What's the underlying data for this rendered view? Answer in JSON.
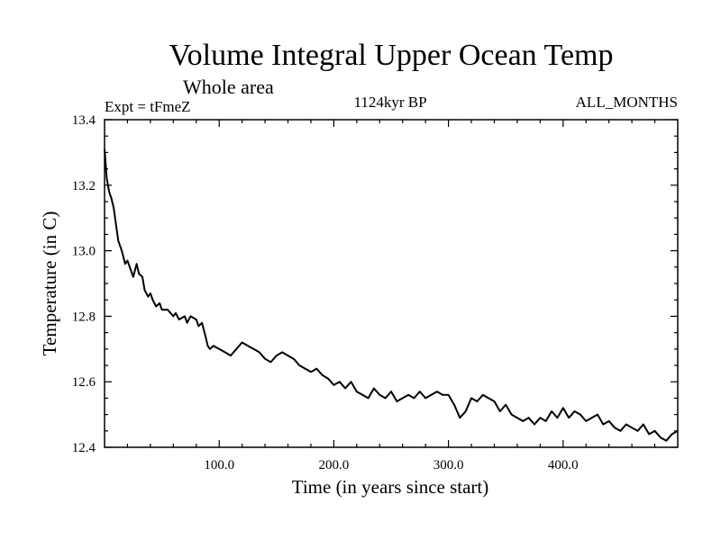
{
  "chart_data": {
    "type": "line",
    "title": "Volume Integral Upper Ocean Temp",
    "subtitle": "Whole area",
    "experiment_label": "Expt = tFmeZ",
    "period_label": "1124kyr BP",
    "months_label": "ALL_MONTHS",
    "xlabel": "Time (in years since start)",
    "ylabel": "Temperature (in C)",
    "xlim": [
      0,
      500
    ],
    "ylim": [
      12.4,
      13.4
    ],
    "xticks": [
      100,
      200,
      300,
      400
    ],
    "xtick_labels": [
      "100.0",
      "200.0",
      "300.0",
      "400.0"
    ],
    "yticks": [
      12.4,
      12.6,
      12.8,
      13.0,
      13.2,
      13.4
    ],
    "ytick_labels": [
      "12.4",
      "12.6",
      "12.8",
      "13.0",
      "13.2",
      "13.4"
    ],
    "series": [
      {
        "name": "Temperature",
        "x": [
          0,
          2,
          4,
          6,
          8,
          10,
          12,
          15,
          18,
          20,
          22,
          25,
          28,
          30,
          33,
          35,
          38,
          40,
          42,
          45,
          48,
          50,
          55,
          60,
          62,
          65,
          70,
          72,
          75,
          80,
          82,
          85,
          88,
          90,
          92,
          95,
          100,
          105,
          110,
          115,
          120,
          125,
          130,
          135,
          140,
          145,
          150,
          155,
          160,
          165,
          170,
          175,
          180,
          185,
          190,
          195,
          200,
          205,
          210,
          215,
          220,
          225,
          230,
          235,
          240,
          245,
          250,
          255,
          260,
          265,
          270,
          275,
          280,
          285,
          290,
          295,
          300,
          305,
          310,
          315,
          320,
          325,
          330,
          335,
          340,
          345,
          350,
          355,
          360,
          365,
          370,
          375,
          380,
          385,
          390,
          395,
          400,
          405,
          410,
          415,
          420,
          425,
          430,
          435,
          440,
          445,
          450,
          455,
          460,
          465,
          470,
          475,
          480,
          485,
          490,
          495,
          500
        ],
        "values": [
          13.31,
          13.22,
          13.18,
          13.16,
          13.13,
          13.08,
          13.03,
          13.0,
          12.96,
          12.97,
          12.95,
          12.92,
          12.96,
          12.93,
          12.92,
          12.88,
          12.86,
          12.87,
          12.85,
          12.83,
          12.84,
          12.82,
          12.82,
          12.8,
          12.81,
          12.79,
          12.8,
          12.78,
          12.8,
          12.79,
          12.77,
          12.78,
          12.74,
          12.71,
          12.7,
          12.71,
          12.7,
          12.69,
          12.68,
          12.7,
          12.72,
          12.71,
          12.7,
          12.69,
          12.67,
          12.66,
          12.68,
          12.69,
          12.68,
          12.67,
          12.65,
          12.64,
          12.63,
          12.64,
          12.62,
          12.61,
          12.59,
          12.6,
          12.58,
          12.6,
          12.57,
          12.56,
          12.55,
          12.58,
          12.56,
          12.55,
          12.57,
          12.54,
          12.55,
          12.56,
          12.55,
          12.57,
          12.55,
          12.56,
          12.57,
          12.56,
          12.56,
          12.53,
          12.49,
          12.51,
          12.55,
          12.54,
          12.56,
          12.55,
          12.54,
          12.51,
          12.53,
          12.5,
          12.49,
          12.48,
          12.49,
          12.47,
          12.49,
          12.48,
          12.51,
          12.49,
          12.52,
          12.49,
          12.51,
          12.5,
          12.48,
          12.49,
          12.5,
          12.47,
          12.48,
          12.46,
          12.45,
          12.47,
          12.46,
          12.45,
          12.47,
          12.44,
          12.45,
          12.43,
          12.42,
          12.44,
          12.45
        ]
      }
    ]
  }
}
